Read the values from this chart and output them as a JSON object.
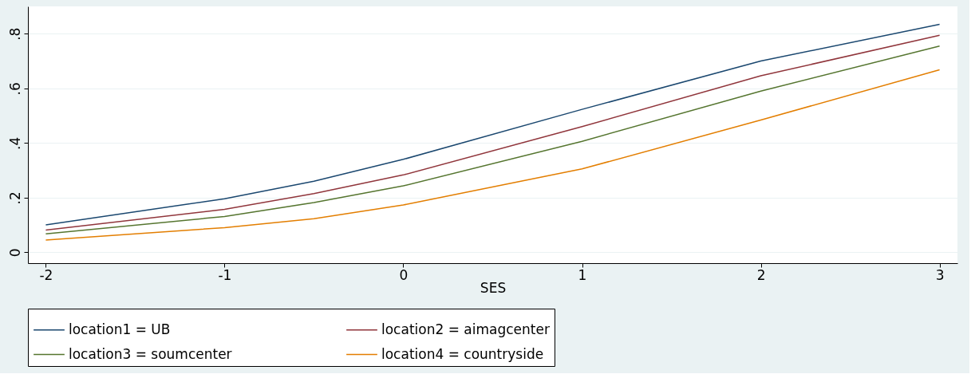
{
  "chart_data": {
    "type": "line",
    "xlabel": "SES",
    "x": [
      -2,
      -1,
      -0.5,
      0,
      1,
      2,
      3
    ],
    "series": [
      {
        "name": "location1 = UB",
        "color": "#1a476f",
        "values": [
          0.1,
          0.196,
          0.26,
          0.34,
          0.523,
          0.7,
          0.834
        ]
      },
      {
        "name": "location2 = aimagcenter",
        "color": "#90353b",
        "values": [
          0.081,
          0.157,
          0.215,
          0.283,
          0.46,
          0.646,
          0.794
        ]
      },
      {
        "name": "location3 = soumcenter",
        "color": "#55752f",
        "values": [
          0.067,
          0.131,
          0.182,
          0.243,
          0.406,
          0.59,
          0.755
        ]
      },
      {
        "name": "location4 = countryside",
        "color": "#e37e00",
        "values": [
          0.045,
          0.09,
          0.123,
          0.173,
          0.305,
          0.484,
          0.668
        ]
      }
    ],
    "xlim": [
      -2.1,
      3.1
    ],
    "xticks": [
      -2,
      -1,
      0,
      1,
      2,
      3
    ],
    "ylim": [
      -0.04,
      0.9
    ],
    "yticks": [
      {
        "value": 0,
        "label": "0"
      },
      {
        "value": 0.2,
        "label": ".2"
      },
      {
        "value": 0.4,
        "label": ".4"
      },
      {
        "value": 0.6,
        "label": ".6"
      },
      {
        "value": 0.8,
        "label": ".8"
      }
    ],
    "grid": "y",
    "legend": "bottom",
    "line_style": "solid",
    "marker": "none"
  }
}
